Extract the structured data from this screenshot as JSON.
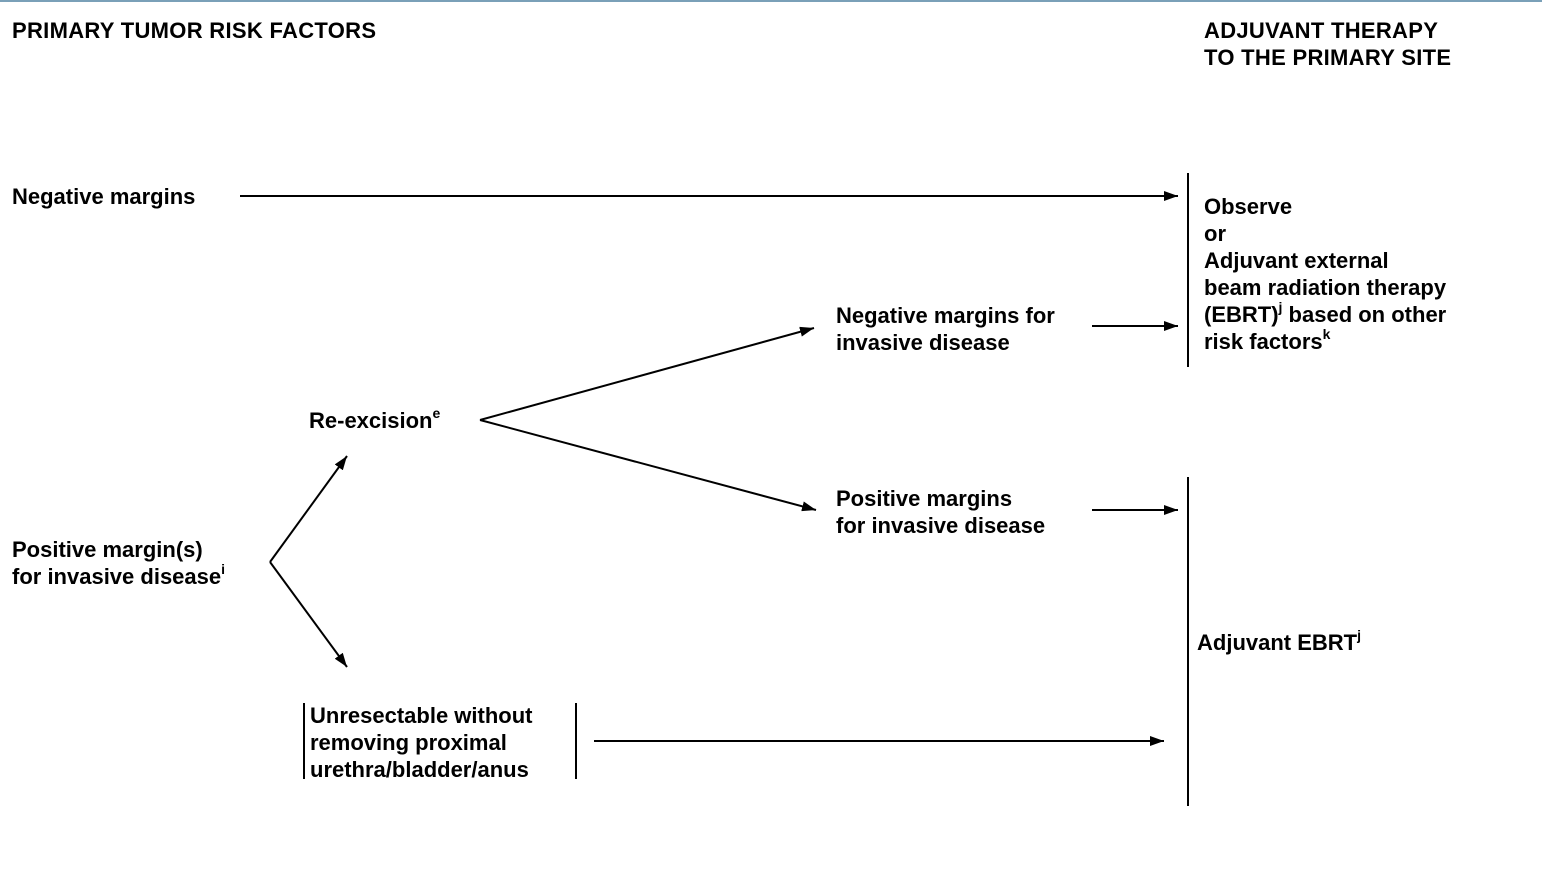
{
  "headers": {
    "left": "PRIMARY TUMOR RISK FACTORS",
    "right_line1": "ADJUVANT THERAPY",
    "right_line2": "TO THE PRIMARY SITE"
  },
  "nodes": {
    "negative_margins": {
      "text": "Negative margins"
    },
    "positive_margins": {
      "line1": "Positive margin(s)",
      "line2": "for invasive disease",
      "sup": "i"
    },
    "reexcision": {
      "text": "Re-excision",
      "sup": "e"
    },
    "unresectable": {
      "line1": "Unresectable without",
      "line2": "removing proximal",
      "line3": "urethra/bladder/anus"
    },
    "neg_invasive": {
      "line1": "Negative margins for",
      "line2": "invasive disease"
    },
    "pos_invasive": {
      "line1": "Positive margins",
      "line2": "for invasive disease"
    }
  },
  "outcomes": {
    "observe": {
      "line1": "Observe",
      "line2": "or",
      "line3": "Adjuvant external",
      "line4": "beam radiation therapy",
      "line5a": "(EBRT)",
      "sup_j": "j",
      "line5b": " based on other",
      "line6": "risk factors",
      "sup_k": "k"
    },
    "ebrt": {
      "text": "Adjuvant EBRT",
      "sup": "j"
    }
  },
  "colors": {
    "line": "#000000",
    "top_rule": "#7aa0b8"
  }
}
